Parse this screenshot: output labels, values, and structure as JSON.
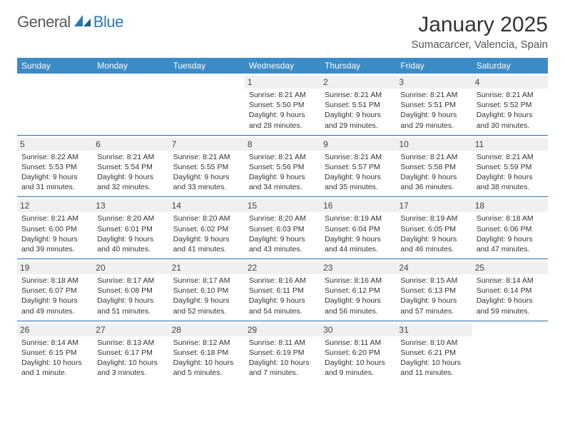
{
  "logo": {
    "text1": "General",
    "text2": "Blue",
    "color1": "#5a5a5a",
    "color2": "#2a7ab8"
  },
  "title": "January 2025",
  "location": "Sumacarcer, Valencia, Spain",
  "header_bg": "#3b8bc6",
  "header_text_color": "#ffffff",
  "daynum_bg": "#eef0f2",
  "rule_color": "#2a6fa3",
  "weekdays": [
    "Sunday",
    "Monday",
    "Tuesday",
    "Wednesday",
    "Thursday",
    "Friday",
    "Saturday"
  ],
  "weeks": [
    [
      null,
      null,
      null,
      {
        "n": "1",
        "sunrise": "8:21 AM",
        "sunset": "5:50 PM",
        "daylight": "9 hours and 28 minutes."
      },
      {
        "n": "2",
        "sunrise": "8:21 AM",
        "sunset": "5:51 PM",
        "daylight": "9 hours and 29 minutes."
      },
      {
        "n": "3",
        "sunrise": "8:21 AM",
        "sunset": "5:51 PM",
        "daylight": "9 hours and 29 minutes."
      },
      {
        "n": "4",
        "sunrise": "8:21 AM",
        "sunset": "5:52 PM",
        "daylight": "9 hours and 30 minutes."
      }
    ],
    [
      {
        "n": "5",
        "sunrise": "8:22 AM",
        "sunset": "5:53 PM",
        "daylight": "9 hours and 31 minutes."
      },
      {
        "n": "6",
        "sunrise": "8:21 AM",
        "sunset": "5:54 PM",
        "daylight": "9 hours and 32 minutes."
      },
      {
        "n": "7",
        "sunrise": "8:21 AM",
        "sunset": "5:55 PM",
        "daylight": "9 hours and 33 minutes."
      },
      {
        "n": "8",
        "sunrise": "8:21 AM",
        "sunset": "5:56 PM",
        "daylight": "9 hours and 34 minutes."
      },
      {
        "n": "9",
        "sunrise": "8:21 AM",
        "sunset": "5:57 PM",
        "daylight": "9 hours and 35 minutes."
      },
      {
        "n": "10",
        "sunrise": "8:21 AM",
        "sunset": "5:58 PM",
        "daylight": "9 hours and 36 minutes."
      },
      {
        "n": "11",
        "sunrise": "8:21 AM",
        "sunset": "5:59 PM",
        "daylight": "9 hours and 38 minutes."
      }
    ],
    [
      {
        "n": "12",
        "sunrise": "8:21 AM",
        "sunset": "6:00 PM",
        "daylight": "9 hours and 39 minutes."
      },
      {
        "n": "13",
        "sunrise": "8:20 AM",
        "sunset": "6:01 PM",
        "daylight": "9 hours and 40 minutes."
      },
      {
        "n": "14",
        "sunrise": "8:20 AM",
        "sunset": "6:02 PM",
        "daylight": "9 hours and 41 minutes."
      },
      {
        "n": "15",
        "sunrise": "8:20 AM",
        "sunset": "6:03 PM",
        "daylight": "9 hours and 43 minutes."
      },
      {
        "n": "16",
        "sunrise": "8:19 AM",
        "sunset": "6:04 PM",
        "daylight": "9 hours and 44 minutes."
      },
      {
        "n": "17",
        "sunrise": "8:19 AM",
        "sunset": "6:05 PM",
        "daylight": "9 hours and 46 minutes."
      },
      {
        "n": "18",
        "sunrise": "8:18 AM",
        "sunset": "6:06 PM",
        "daylight": "9 hours and 47 minutes."
      }
    ],
    [
      {
        "n": "19",
        "sunrise": "8:18 AM",
        "sunset": "6:07 PM",
        "daylight": "9 hours and 49 minutes."
      },
      {
        "n": "20",
        "sunrise": "8:17 AM",
        "sunset": "6:08 PM",
        "daylight": "9 hours and 51 minutes."
      },
      {
        "n": "21",
        "sunrise": "8:17 AM",
        "sunset": "6:10 PM",
        "daylight": "9 hours and 52 minutes."
      },
      {
        "n": "22",
        "sunrise": "8:16 AM",
        "sunset": "6:11 PM",
        "daylight": "9 hours and 54 minutes."
      },
      {
        "n": "23",
        "sunrise": "8:16 AM",
        "sunset": "6:12 PM",
        "daylight": "9 hours and 56 minutes."
      },
      {
        "n": "24",
        "sunrise": "8:15 AM",
        "sunset": "6:13 PM",
        "daylight": "9 hours and 57 minutes."
      },
      {
        "n": "25",
        "sunrise": "8:14 AM",
        "sunset": "6:14 PM",
        "daylight": "9 hours and 59 minutes."
      }
    ],
    [
      {
        "n": "26",
        "sunrise": "8:14 AM",
        "sunset": "6:15 PM",
        "daylight": "10 hours and 1 minute."
      },
      {
        "n": "27",
        "sunrise": "8:13 AM",
        "sunset": "6:17 PM",
        "daylight": "10 hours and 3 minutes."
      },
      {
        "n": "28",
        "sunrise": "8:12 AM",
        "sunset": "6:18 PM",
        "daylight": "10 hours and 5 minutes."
      },
      {
        "n": "29",
        "sunrise": "8:11 AM",
        "sunset": "6:19 PM",
        "daylight": "10 hours and 7 minutes."
      },
      {
        "n": "30",
        "sunrise": "8:11 AM",
        "sunset": "6:20 PM",
        "daylight": "10 hours and 9 minutes."
      },
      {
        "n": "31",
        "sunrise": "8:10 AM",
        "sunset": "6:21 PM",
        "daylight": "10 hours and 11 minutes."
      },
      null
    ]
  ],
  "labels": {
    "sunrise": "Sunrise:",
    "sunset": "Sunset:",
    "daylight": "Daylight:"
  }
}
